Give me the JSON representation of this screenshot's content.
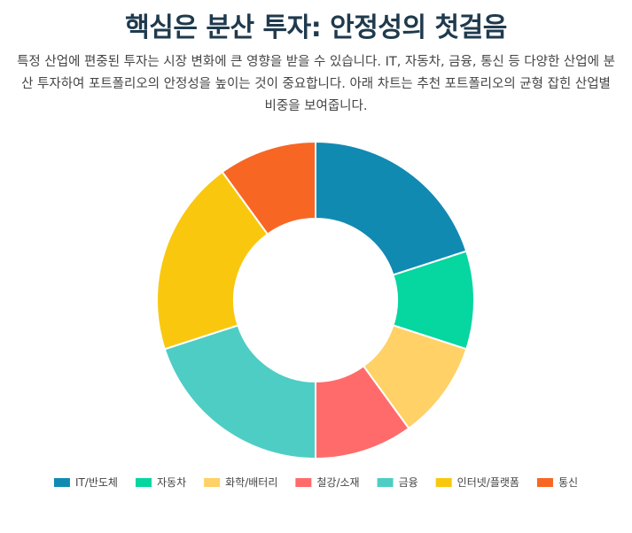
{
  "header": {
    "title": "핵심은 분산 투자: 안정성의 첫걸음",
    "description": "특정 산업에 편중된 투자는 시장 변화에 큰 영향을 받을 수 있습니다. IT, 자동차, 금융, 통신 등 다양한 산업에 분산 투자하여 포트폴리오의 안정성을 높이는 것이 중요합니다. 아래 차트는 추천 포트폴리오의 균형 잡힌 산업별 비중을 보여줍니다."
  },
  "chart_data": {
    "type": "pie",
    "variant": "doughnut",
    "title": "",
    "legend_position": "bottom",
    "categories": [
      "IT/반도체",
      "자동차",
      "화학/배터리",
      "철강/소재",
      "금융",
      "인터넷/플랫폼",
      "통신"
    ],
    "values": [
      20,
      10,
      10,
      10,
      20,
      20,
      10
    ],
    "colors": [
      "#118ab2",
      "#06d6a0",
      "#ffd166",
      "#ff6b6b",
      "#4ecdc4",
      "#f9c80e",
      "#f86624"
    ]
  }
}
